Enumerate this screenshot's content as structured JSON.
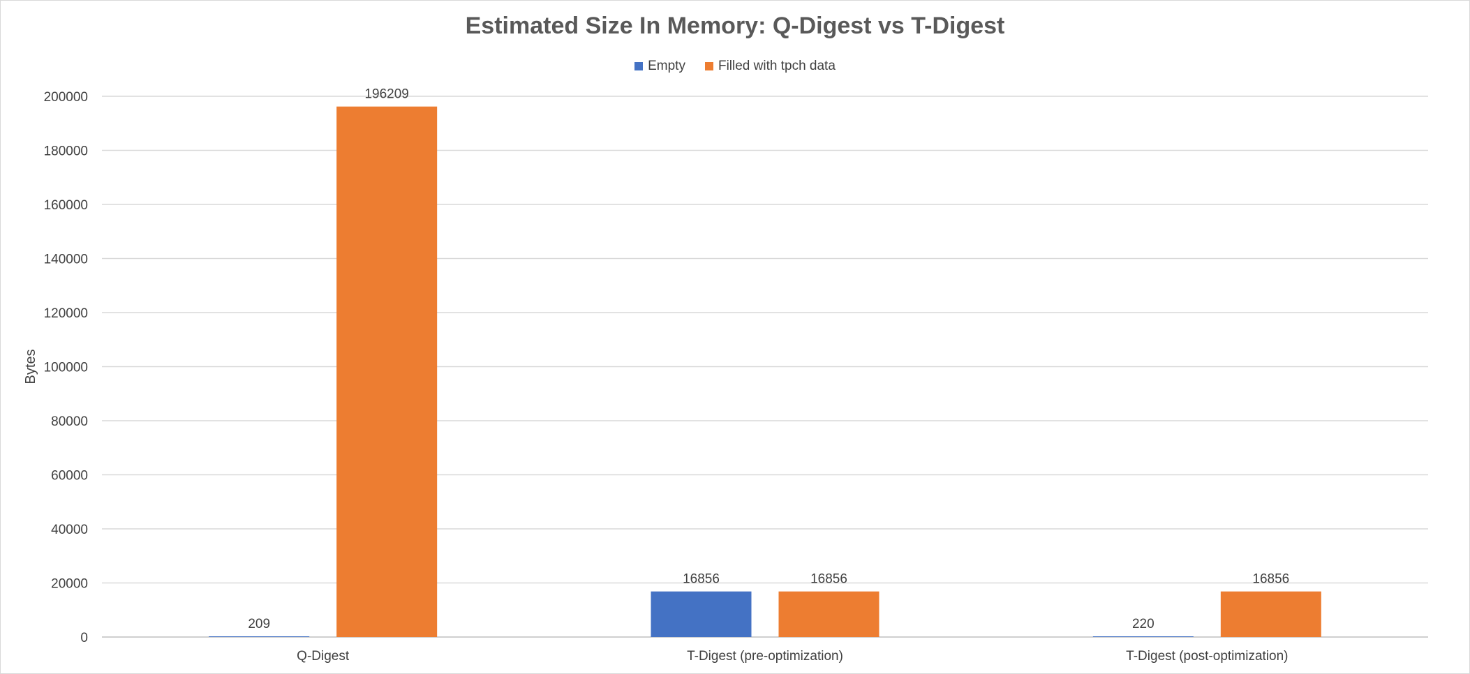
{
  "chart_data": {
    "type": "bar",
    "title": "Estimated Size In Memory: Q-Digest vs T-Digest",
    "ylabel": "Bytes",
    "xlabel": "",
    "ylim": [
      0,
      200000
    ],
    "yticks": [
      0,
      20000,
      40000,
      60000,
      80000,
      100000,
      120000,
      140000,
      160000,
      180000,
      200000
    ],
    "grid": true,
    "legend_position": "top",
    "categories": [
      "Q-Digest",
      "T-Digest (pre-optimization)",
      "T-Digest (post-optimization)"
    ],
    "series": [
      {
        "name": "Empty",
        "color": "#4472C4",
        "values": [
          209,
          16856,
          220
        ]
      },
      {
        "name": "Filled with tpch data",
        "color": "#ED7D31",
        "values": [
          196209,
          16856,
          16856
        ]
      }
    ]
  }
}
